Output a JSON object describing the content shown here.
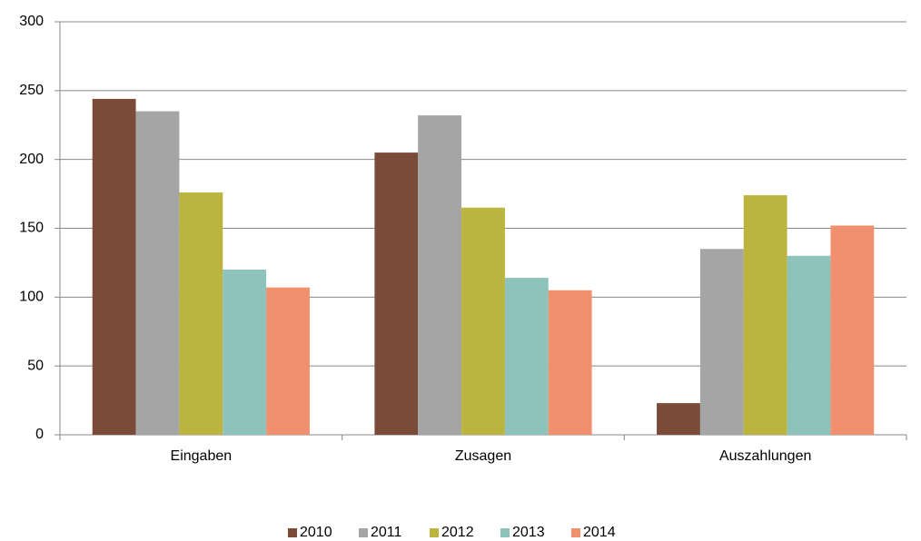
{
  "chart_data": {
    "type": "bar",
    "categories": [
      "Eingaben",
      "Zusagen",
      "Auszahlungen"
    ],
    "series": [
      {
        "name": "2010",
        "color": "#7b4b3a",
        "values": [
          244,
          205,
          23
        ]
      },
      {
        "name": "2011",
        "color": "#a5a5a5",
        "values": [
          235,
          232,
          135
        ]
      },
      {
        "name": "2012",
        "color": "#bbb43e",
        "values": [
          176,
          165,
          174
        ]
      },
      {
        "name": "2013",
        "color": "#8ec3bc",
        "values": [
          120,
          114,
          130
        ]
      },
      {
        "name": "2014",
        "color": "#f0906f",
        "values": [
          107,
          105,
          152
        ]
      }
    ],
    "ylim": [
      0,
      300
    ],
    "yticks": [
      0,
      50,
      100,
      150,
      200,
      250,
      300
    ],
    "grid": true,
    "legend": "bottom"
  }
}
